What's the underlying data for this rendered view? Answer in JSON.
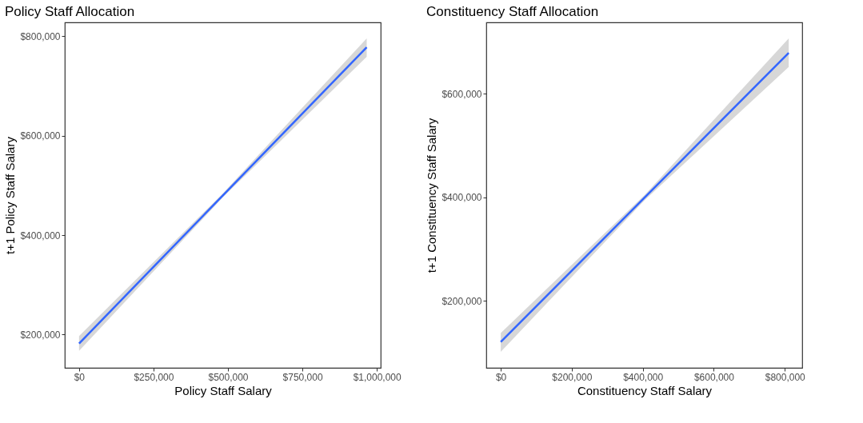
{
  "chart_data": [
    {
      "type": "line",
      "title": "Policy Staff Allocation",
      "xlabel": "Policy Staff Salary",
      "ylabel": "t+1 Policy Staff Salary",
      "series": [
        {
          "color": "#3366ff",
          "x": [
            0,
            483000,
            966000
          ],
          "values": [
            182000,
            480000,
            778000
          ],
          "lower": [
            167000,
            476000,
            759000
          ],
          "upper": [
            197000,
            484000,
            796000
          ]
        }
      ],
      "xlim": [
        -48000,
        1013000
      ],
      "ylim": [
        133000,
        828000
      ],
      "xticks": [
        {
          "value": 0,
          "label": "$0"
        },
        {
          "value": 250000,
          "label": "$250,000"
        },
        {
          "value": 500000,
          "label": "$500,000"
        },
        {
          "value": 750000,
          "label": "$750,000"
        },
        {
          "value": 1000000,
          "label": "$1,000,000"
        }
      ],
      "yticks": [
        {
          "value": 200000,
          "label": "$200,000"
        },
        {
          "value": 400000,
          "label": "$400,000"
        },
        {
          "value": 600000,
          "label": "$600,000"
        },
        {
          "value": 800000,
          "label": "$800,000"
        }
      ],
      "grid": false,
      "marker": "none",
      "line_style": "solid"
    },
    {
      "type": "line",
      "title": "Constituency Staff Allocation",
      "xlabel": "Constituency Staff Salary",
      "ylabel": "t+1 Constituency Staff Salary",
      "series": [
        {
          "color": "#3366ff",
          "x": [
            0,
            405500,
            811000
          ],
          "values": [
            121000,
            400000,
            679000
          ],
          "lower": [
            102000,
            395000,
            652000
          ],
          "upper": [
            138000,
            405000,
            707000
          ]
        }
      ],
      "xlim": [
        -40700,
        849000
      ],
      "ylim": [
        71000,
        738000
      ],
      "xticks": [
        {
          "value": 0,
          "label": "$0"
        },
        {
          "value": 200000,
          "label": "$200,000"
        },
        {
          "value": 400000,
          "label": "$400,000"
        },
        {
          "value": 600000,
          "label": "$600,000"
        },
        {
          "value": 800000,
          "label": "$800,000"
        }
      ],
      "yticks": [
        {
          "value": 200000,
          "label": "$200,000"
        },
        {
          "value": 400000,
          "label": "$400,000"
        },
        {
          "value": 600000,
          "label": "$600,000"
        }
      ],
      "grid": false,
      "marker": "none",
      "line_style": "solid"
    }
  ]
}
